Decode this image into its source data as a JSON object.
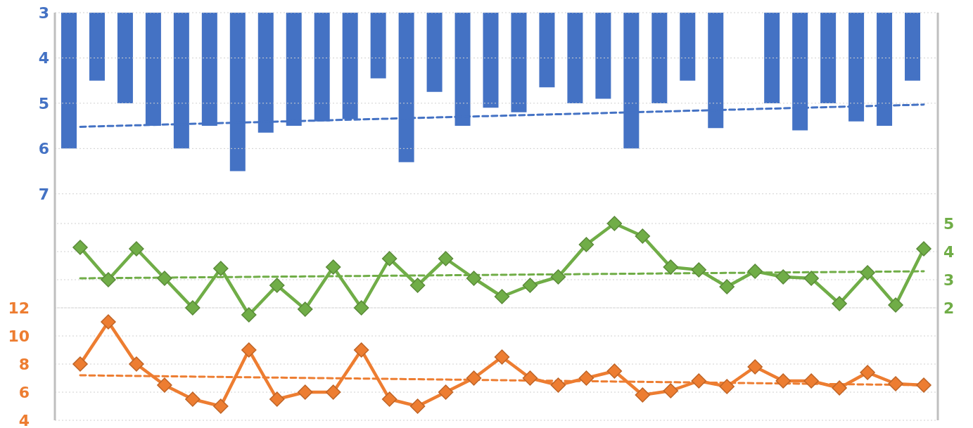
{
  "chart_data": {
    "type": "bar",
    "categories": [
      null,
      null,
      null,
      null,
      null,
      null,
      null,
      null,
      null,
      null,
      null,
      null,
      null,
      null,
      null,
      null,
      null,
      null,
      null,
      null,
      null,
      null,
      null,
      null,
      null,
      null,
      null,
      null,
      null,
      null,
      null
    ],
    "series": [
      {
        "axis": "y",
        "color": "#4472c4",
        "values": [
          6.0,
          4.5,
          5.0,
          5.5,
          6.0,
          5.5,
          6.5,
          5.65,
          5.5,
          5.4,
          5.35,
          4.45,
          6.3,
          4.75,
          5.5,
          5.1,
          5.2,
          4.65,
          5.0,
          4.9,
          6.0,
          5.0,
          4.5,
          5.55,
          null,
          5.0,
          5.6,
          5.0,
          5.4,
          5.5,
          4.5
        ]
      },
      {
        "type": "line",
        "axis": "y",
        "color": "#4472c4",
        "line_style": "dashed",
        "marker": "none",
        "values": [
          5.52,
          null,
          null,
          null,
          null,
          null,
          null,
          null,
          null,
          null,
          null,
          null,
          null,
          null,
          null,
          null,
          null,
          null,
          null,
          null,
          null,
          null,
          null,
          null,
          null,
          null,
          null,
          null,
          null,
          null,
          5.03
        ]
      },
      {
        "type": "line",
        "axis": "y2",
        "color": "#70ad47",
        "line_style": "solid",
        "marker": "diamond",
        "values": [
          4.15,
          3.0,
          4.1,
          3.05,
          2.0,
          3.4,
          1.75,
          2.8,
          1.95,
          3.45,
          2.0,
          3.75,
          2.8,
          3.75,
          3.05,
          2.4,
          2.8,
          3.1,
          4.25,
          5.0,
          4.55,
          3.45,
          3.35,
          2.75,
          3.3,
          3.1,
          3.05,
          2.15,
          3.25,
          2.1,
          4.1
        ]
      },
      {
        "type": "line",
        "axis": "y2",
        "color": "#70ad47",
        "line_style": "dashed",
        "marker": "none",
        "values": [
          3.05,
          null,
          null,
          null,
          null,
          null,
          null,
          null,
          null,
          null,
          null,
          null,
          null,
          null,
          null,
          null,
          null,
          null,
          null,
          null,
          null,
          null,
          null,
          null,
          null,
          null,
          null,
          null,
          null,
          null,
          3.3
        ]
      },
      {
        "type": "line",
        "axis": "y3",
        "color": "#ed7d31",
        "line_style": "solid",
        "marker": "diamond",
        "values": [
          8,
          11,
          8,
          6.5,
          5.5,
          5,
          9,
          5.5,
          6,
          6,
          9,
          5.5,
          5,
          6,
          7,
          8.5,
          7,
          6.5,
          7,
          7.5,
          5.8,
          6.1,
          6.8,
          6.4,
          7.8,
          6.8,
          6.8,
          6.3,
          7.4,
          6.6,
          6.5
        ]
      },
      {
        "type": "line",
        "axis": "y3",
        "color": "#ed7d31",
        "line_style": "dashed",
        "marker": "none",
        "values": [
          7.2,
          null,
          null,
          null,
          null,
          null,
          null,
          null,
          null,
          null,
          null,
          null,
          null,
          null,
          null,
          null,
          null,
          null,
          null,
          null,
          null,
          null,
          null,
          null,
          null,
          null,
          null,
          null,
          null,
          null,
          6.5
        ]
      }
    ],
    "ylim": [
      12,
      3
    ],
    "yticks": [
      3,
      4,
      5,
      6,
      7
    ],
    "y2lim": [
      -2,
      12.5
    ],
    "y2ticks": [
      2,
      3,
      4,
      5
    ],
    "y3lim": [
      4,
      33
    ],
    "y3ticks": [
      4,
      6,
      8,
      10,
      12
    ],
    "tick_labels": "y",
    "grid": "y",
    "legend": false
  }
}
